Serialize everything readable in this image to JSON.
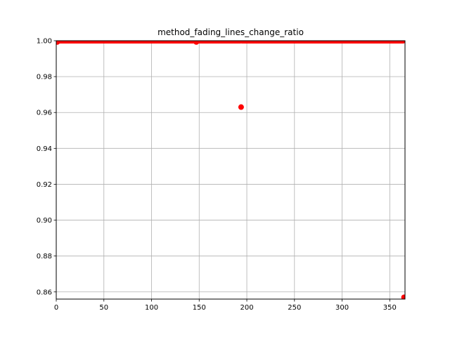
{
  "chart_data": {
    "type": "scatter",
    "title": "method_fading_lines_change_ratio",
    "xlabel": "",
    "ylabel": "",
    "xlim": [
      0,
      366
    ],
    "ylim": [
      0.856,
      1.0
    ],
    "xticks": [
      0,
      50,
      100,
      150,
      200,
      250,
      300,
      350
    ],
    "yticks": [
      0.86,
      0.88,
      0.9,
      0.92,
      0.94,
      0.96,
      0.98,
      1.0
    ],
    "xtick_labels": [
      "0",
      "50",
      "100",
      "150",
      "200",
      "250",
      "300",
      "350"
    ],
    "ytick_labels": [
      "0.86",
      "0.88",
      "0.90",
      "0.92",
      "0.94",
      "0.96",
      "0.98",
      "1.00"
    ],
    "grid": true,
    "marker_color": "#ff0000",
    "series": [
      {
        "x_range": [
          1,
          365
        ],
        "default_y": 1.0,
        "overrides": [
          {
            "x": 1,
            "y": 0.9993
          },
          {
            "x": 147,
            "y": 0.9993
          },
          {
            "x": 194,
            "y": 0.963
          },
          {
            "x": 365,
            "y": 0.857
          }
        ]
      }
    ]
  }
}
